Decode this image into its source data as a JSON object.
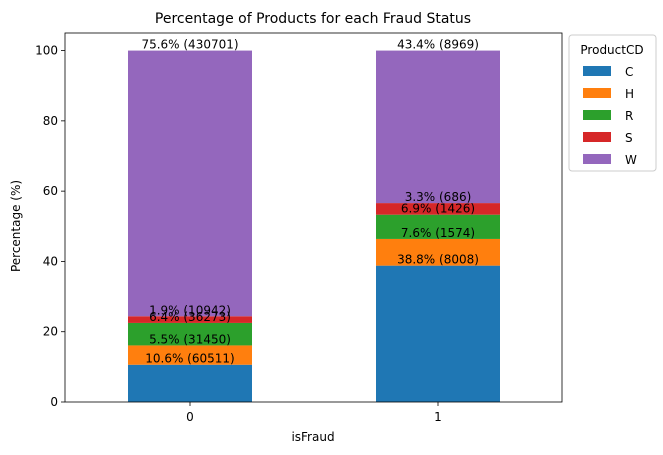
{
  "chart_data": {
    "type": "bar",
    "stacked": true,
    "title": "Percentage of Products for each Fraud Status",
    "xlabel": "isFraud",
    "ylabel": "Percentage (%)",
    "categories": [
      "0",
      "1"
    ],
    "ylim": [
      0,
      105
    ],
    "yticks": [
      0,
      20,
      40,
      60,
      80,
      100
    ],
    "grid": false,
    "legend": {
      "title": "ProductCD",
      "placement": "outside-top-right"
    },
    "series": [
      {
        "name": "C",
        "color": "#1f77b4",
        "values": [
          10.6,
          38.8
        ],
        "labels": [
          "10.6% (60511)",
          "38.8% (8008)"
        ]
      },
      {
        "name": "H",
        "color": "#ff7f0e",
        "values": [
          5.5,
          7.6
        ],
        "labels": [
          "5.5% (31450)",
          "7.6% (1574)"
        ]
      },
      {
        "name": "R",
        "color": "#2ca02c",
        "values": [
          6.4,
          6.9
        ],
        "labels": [
          "6.4% (36273)",
          "6.9% (1426)"
        ]
      },
      {
        "name": "S",
        "color": "#d62728",
        "values": [
          1.9,
          3.3
        ],
        "labels": [
          "1.9% (10942)",
          "3.3% (686)"
        ]
      },
      {
        "name": "W",
        "color": "#9467bd",
        "values": [
          75.6,
          43.4
        ],
        "labels": [
          "75.6% (430701)",
          "43.4% (8969)"
        ]
      }
    ]
  }
}
